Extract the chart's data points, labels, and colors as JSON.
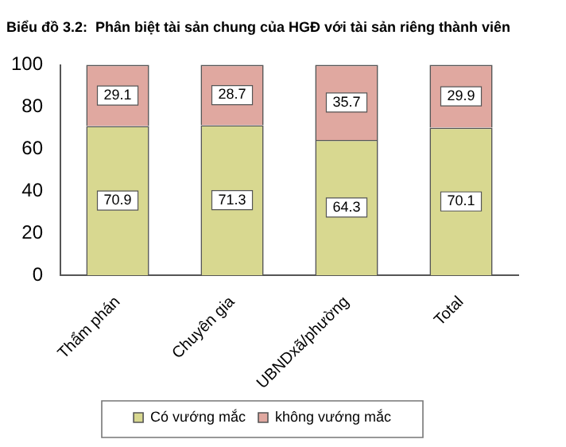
{
  "chart_data": {
    "type": "bar",
    "title": "Biểu đồ 3.2:  Phân biệt tài sản chung của HGĐ với tài sản riêng thành viên",
    "categories": [
      "Thẩm phán",
      "Chuyên gia",
      "UBNDxã/phường",
      "Total"
    ],
    "stacked": true,
    "ylim": [
      0,
      100
    ],
    "yticks": [
      0,
      20,
      40,
      60,
      80,
      100
    ],
    "grid": false,
    "legend": "bottom",
    "data_labels": true,
    "series": [
      {
        "name": "Có vướng mắc",
        "color": "#d8d890",
        "values": [
          70.9,
          71.3,
          64.3,
          70.1
        ]
      },
      {
        "name": "không vướng mắc",
        "color": "#e0a8a0",
        "values": [
          29.1,
          28.7,
          35.7,
          29.9
        ]
      }
    ]
  }
}
